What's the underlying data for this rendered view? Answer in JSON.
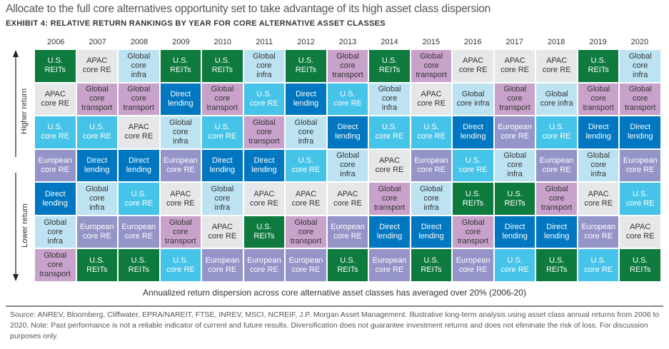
{
  "header": {
    "title": "Allocate to the full core alternatives opportunity set to take advantage of its high asset class dispersion",
    "subtitle": "EXHIBIT 4: RELATIVE RETURN RANKINGS BY YEAR FOR CORE ALTERNATIVE ASSET CLASSES"
  },
  "axis": {
    "higher_label": "Higher return",
    "lower_label": "Lower return"
  },
  "colors": {
    "U.S. REITs": {
      "bg": "#0e7a3d",
      "fg": "#ffffff",
      "label": "U.S.\nREITs"
    },
    "APAC core RE": {
      "bg": "#e6e7e9",
      "fg": "#333333",
      "label": "APAC\ncore RE"
    },
    "Global core infra": {
      "bg": "#bde3f2",
      "fg": "#333333",
      "label": "Global\ncore\ninfra"
    },
    "Global core transport": {
      "bg": "#c9a2cb",
      "fg": "#333333",
      "label": "Global\ncore\ntransport"
    },
    "U.S. core RE": {
      "bg": "#45c3e8",
      "fg": "#ffffff",
      "label": "U.S.\ncore RE"
    },
    "Direct lending": {
      "bg": "#0077c0",
      "fg": "#ffffff",
      "label": "Direct\nlending"
    },
    "European core RE": {
      "bg": "#9494c8",
      "fg": "#ffffff",
      "label": "European\ncore RE"
    }
  },
  "chart_data": {
    "type": "table",
    "title": "EXHIBIT 4: RELATIVE RETURN RANKINGS BY YEAR FOR CORE ALTERNATIVE ASSET CLASSES",
    "ylabel_top": "Higher return",
    "ylabel_bottom": "Lower return",
    "years": [
      "2006",
      "2007",
      "2008",
      "2009",
      "2010",
      "2011",
      "2012",
      "2013",
      "2014",
      "2015",
      "2016",
      "2017",
      "2018",
      "2019",
      "2020"
    ],
    "rankings": [
      [
        "U.S. REITs",
        "APAC core RE",
        "U.S. core RE",
        "European core RE",
        "Direct lending",
        "Global core infra",
        "Global core transport"
      ],
      [
        "APAC core RE",
        "Global core transport",
        "U.S. core RE",
        "Direct lending",
        "Global core infra",
        "European core RE",
        "U.S. REITs"
      ],
      [
        "Global core infra",
        "Global core transport",
        "APAC core RE",
        "Direct lending",
        "U.S. core RE",
        "European core RE",
        "U.S. REITs"
      ],
      [
        "U.S. REITs",
        "Direct lending",
        "Global core infra",
        "European core RE",
        "APAC core RE",
        "Global core transport",
        "U.S. core RE"
      ],
      [
        "U.S. REITs",
        "Global core transport",
        "U.S. core RE",
        "Direct lending",
        "Global core infra",
        "APAC core RE",
        "European core RE"
      ],
      [
        "Global core infra",
        "U.S. core RE",
        "Global core transport",
        "Direct lending",
        "APAC core RE",
        "U.S. REITs",
        "European core RE"
      ],
      [
        "U.S. REITs",
        "Direct lending",
        "Global core infra",
        "U.S. core RE",
        "APAC core RE",
        "Global core transport",
        "European core RE"
      ],
      [
        "Global core transport",
        "U.S. core RE",
        "Direct lending",
        "Global core infra",
        "APAC core RE",
        "European core RE",
        "U.S. REITs"
      ],
      [
        "U.S. REITs",
        "Global core infra",
        "U.S. core RE",
        "APAC core RE",
        "Global core transport",
        "Direct lending",
        "European core RE"
      ],
      [
        "Global core transport",
        "APAC core RE",
        "U.S. core RE",
        "European core RE",
        "Global core infra",
        "Direct lending",
        "U.S. REITs"
      ],
      [
        "APAC core RE",
        "Global core infra",
        "Direct lending",
        "U.S. core RE",
        "U.S. REITs",
        "Global core transport",
        "European core RE"
      ],
      [
        "APAC core RE",
        "Global core transport",
        "European core RE",
        "Global core infra",
        "U.S. REITs",
        "Direct lending",
        "U.S. core RE"
      ],
      [
        "APAC core RE",
        "Global core infra",
        "U.S. core RE",
        "European core RE",
        "Global core transport",
        "Direct lending",
        "U.S. REITs"
      ],
      [
        "U.S. REITs",
        "Global core transport",
        "Direct lending",
        "Global core infra",
        "APAC core RE",
        "European core RE",
        "U.S. core RE"
      ],
      [
        "Global core infra",
        "Global core transport",
        "Direct lending",
        "European core RE",
        "U.S. core RE",
        "APAC core RE",
        "U.S. REITs"
      ]
    ],
    "label_overrides": {
      "2016-1": "Global\ncore infra",
      "2018-1": "Global\ncore infra"
    }
  },
  "footer": {
    "note": "Annualized return dispersion across core alternative asset classes has averaged over 20% (2006-20)",
    "source": "Source: ANREV, Bloomberg, Cliffwater, EPRA/NAREIT, FTSE, INREV, MSCI, NCREIF, J.P. Morgan Asset Management. Illustrative long-term analysis using asset class annual returns from 2006 to 2020. Note: Past performance is not a reliable indicator of current and future results. Diversification does not guarantee investment returns and does not eliminate the risk of loss. For discussion purposes only."
  }
}
